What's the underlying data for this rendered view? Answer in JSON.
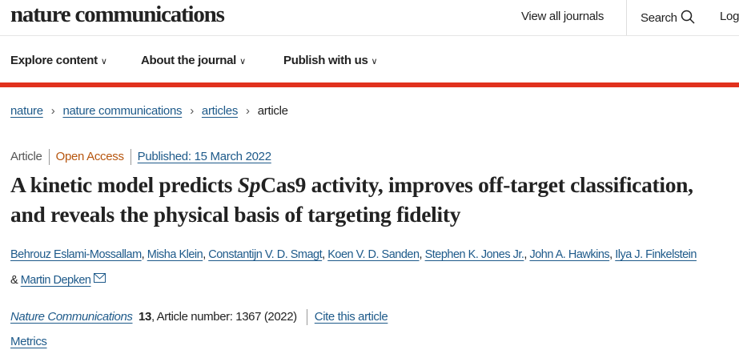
{
  "header": {
    "logo": "nature communications",
    "view_all": "View all journals",
    "search": "Search",
    "login": "Log"
  },
  "nav": {
    "items": [
      "Explore content",
      "About the journal",
      "Publish with us"
    ]
  },
  "breadcrumb": [
    "nature",
    "nature communications",
    "articles",
    "article"
  ],
  "meta": {
    "type": "Article",
    "access": "Open Access",
    "published": "Published: 15 March 2022"
  },
  "title": {
    "pre": "A kinetic model predicts ",
    "italic": "Sp",
    "post": "Cas9 activity, improves off-target classification, and reveals the physical basis of targeting fidelity"
  },
  "authors": [
    "Behrouz Eslami-Mossallam",
    "Misha Klein",
    "Constantijn V. D. Smagt",
    "Koen V. D. Sanden",
    "Stephen K. Jones Jr.",
    "John A. Hawkins",
    "Ilya J. Finkelstein",
    "Martin Depken"
  ],
  "citation": {
    "journal": "Nature Communications",
    "volume": "13",
    "rest": ", Article number: 1367 (2022)",
    "cite": "Cite this article"
  },
  "metrics": "Metrics",
  "colors": {
    "accent": "#e1311d",
    "link": "#1e5a8a",
    "open_access": "#b7560f"
  }
}
